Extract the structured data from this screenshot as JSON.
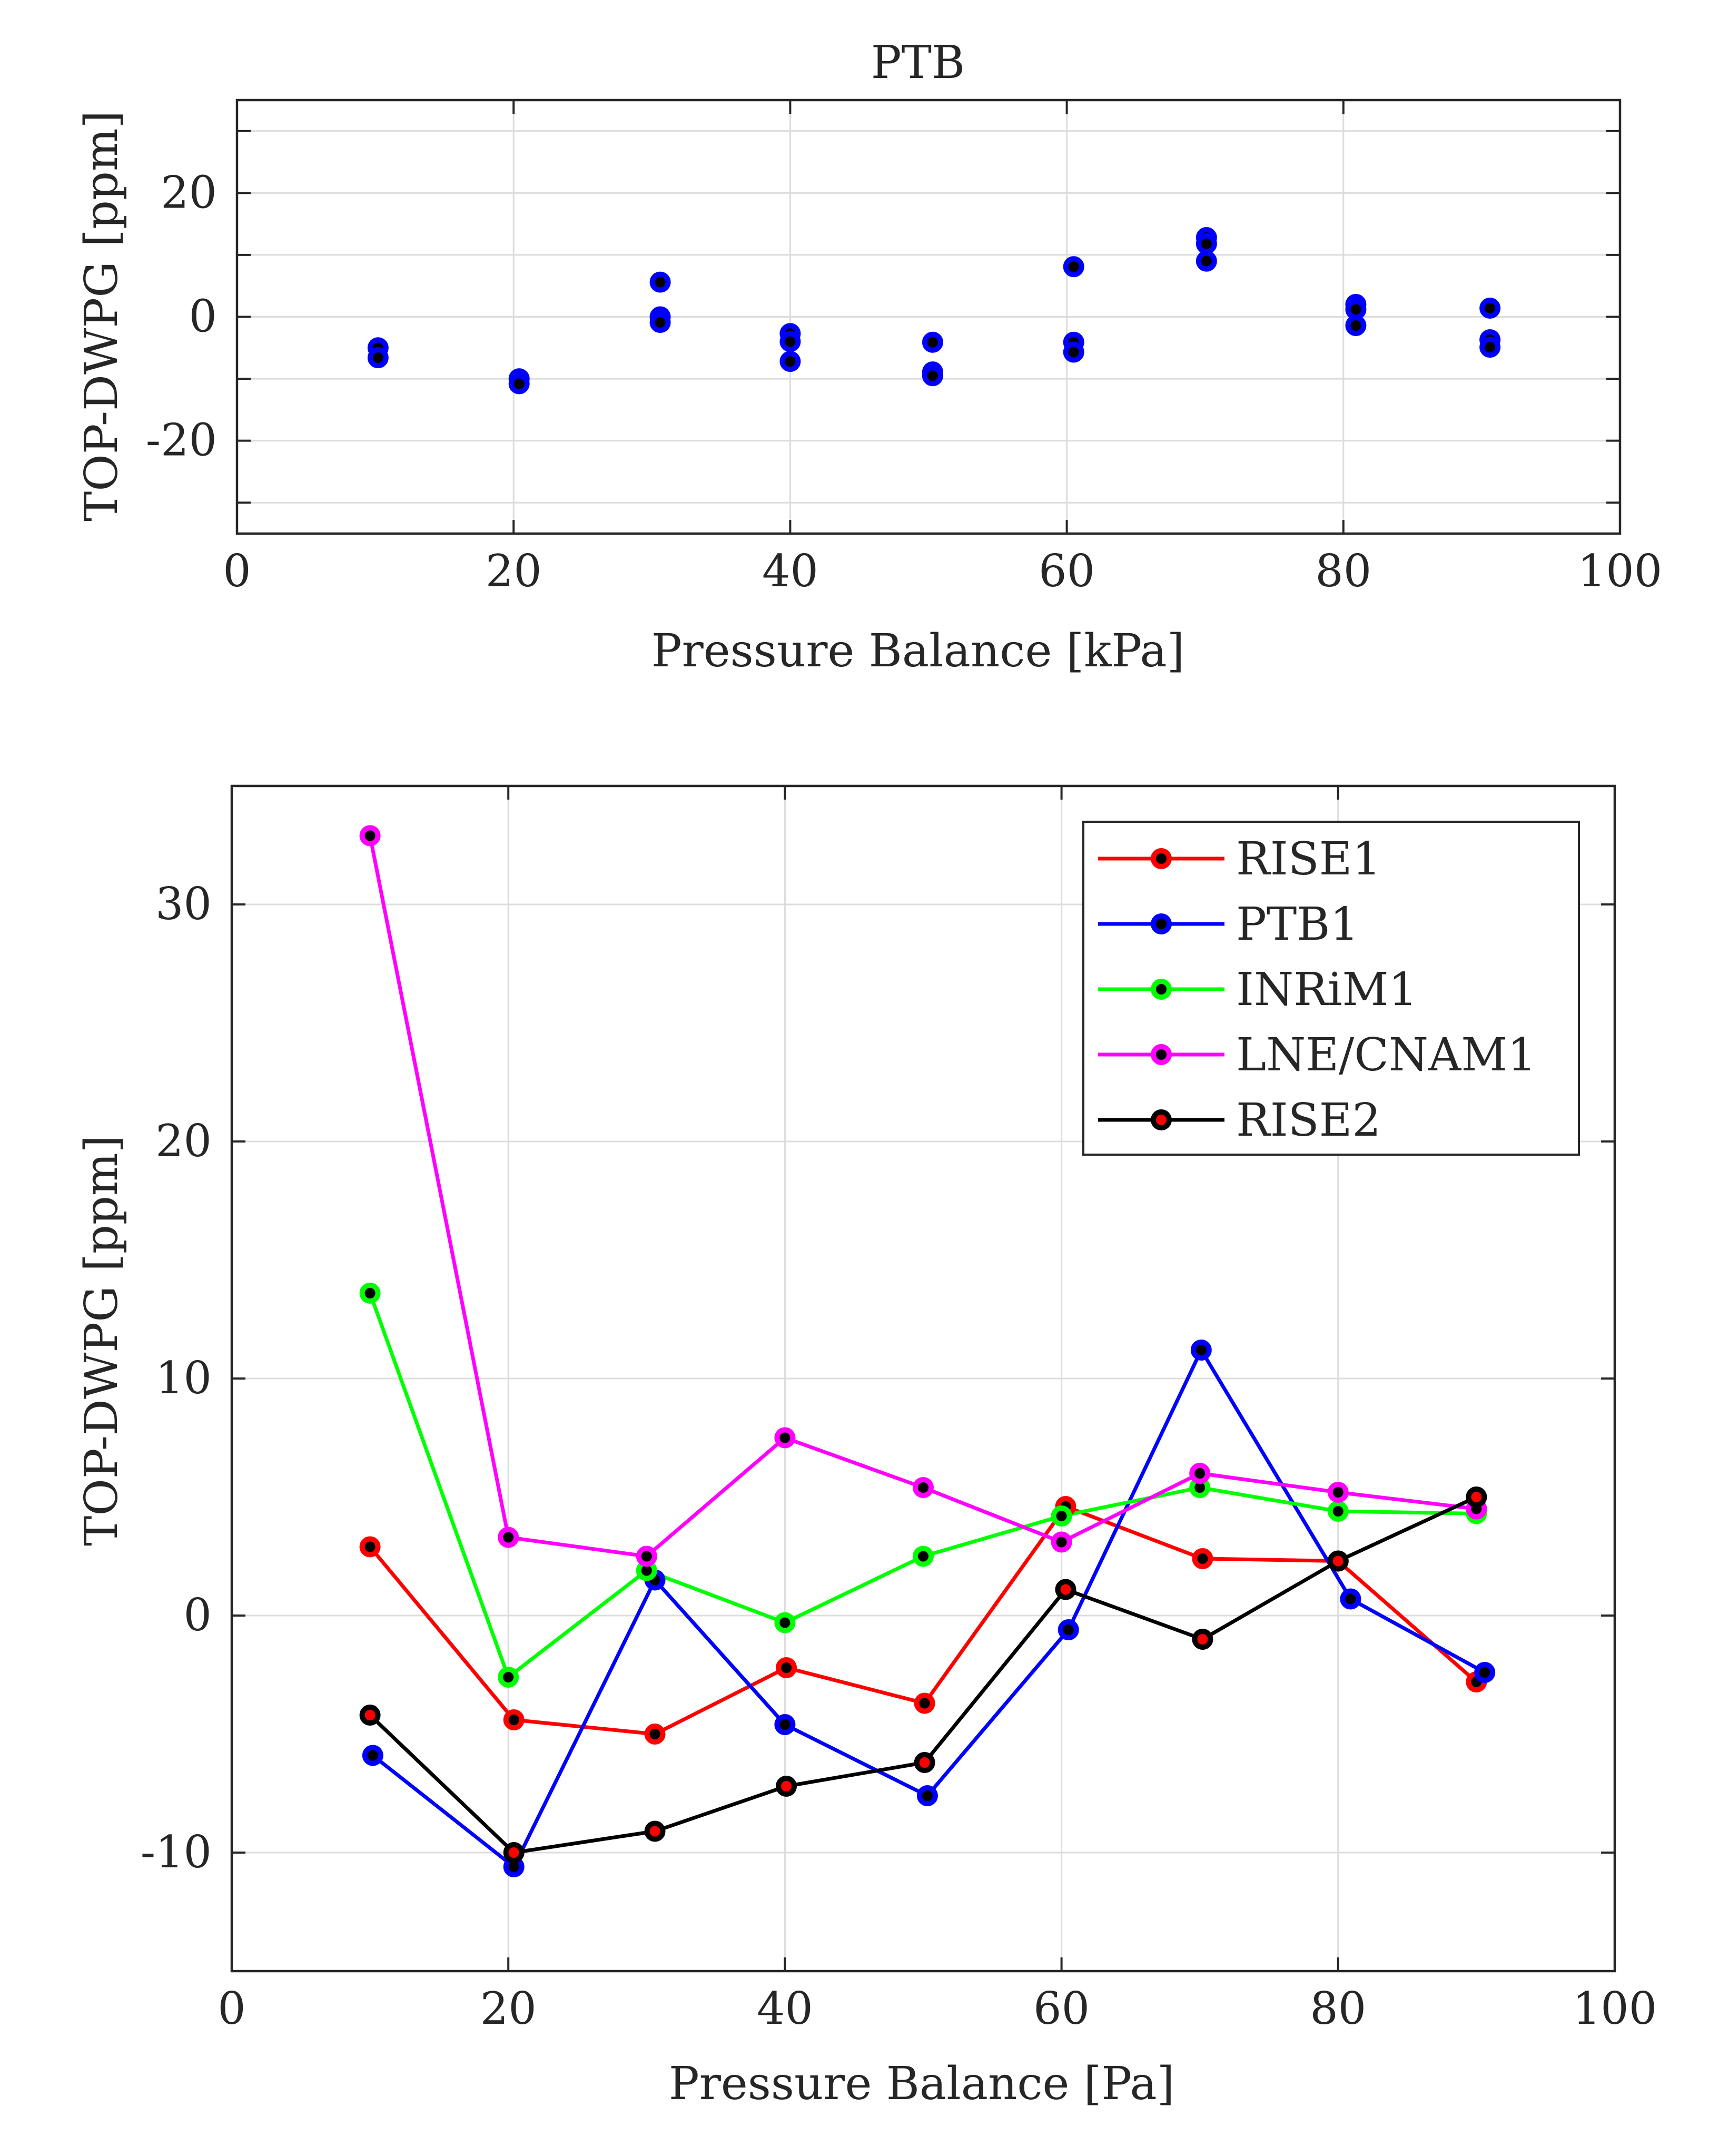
{
  "chart_data": [
    {
      "type": "scatter",
      "title": "PTB",
      "xlabel": "Pressure Balance [kPa]",
      "ylabel": "TOP-DWPG [ppm]",
      "xlim": [
        0,
        100
      ],
      "ylim": [
        -35,
        35
      ],
      "xticks": [
        0,
        20,
        40,
        60,
        80,
        100
      ],
      "yticks": [
        -20,
        0,
        20
      ],
      "xtick_labels": [
        "0",
        "20",
        "40",
        "60",
        "80",
        "100"
      ],
      "ytick_labels": [
        "-20",
        "0",
        "20"
      ],
      "grid": true,
      "marker_face": "#000000",
      "marker_edge": "#0000ff",
      "points": [
        {
          "x": 10.2,
          "y": -5.0
        },
        {
          "x": 10.2,
          "y": -6.6
        },
        {
          "x": 20.4,
          "y": -10.0
        },
        {
          "x": 20.4,
          "y": -10.8
        },
        {
          "x": 30.6,
          "y": 5.6
        },
        {
          "x": 30.6,
          "y": 0.0
        },
        {
          "x": 30.6,
          "y": -0.9
        },
        {
          "x": 40.0,
          "y": -2.7
        },
        {
          "x": 40.0,
          "y": -4.0
        },
        {
          "x": 40.0,
          "y": -7.2
        },
        {
          "x": 50.3,
          "y": -4.1
        },
        {
          "x": 50.3,
          "y": -8.9
        },
        {
          "x": 50.3,
          "y": -9.5
        },
        {
          "x": 60.5,
          "y": 8.1
        },
        {
          "x": 60.5,
          "y": -4.1
        },
        {
          "x": 60.5,
          "y": -5.7
        },
        {
          "x": 70.1,
          "y": 12.8
        },
        {
          "x": 70.1,
          "y": 11.8
        },
        {
          "x": 70.1,
          "y": 9.0
        },
        {
          "x": 80.9,
          "y": 2.0
        },
        {
          "x": 80.9,
          "y": 1.2
        },
        {
          "x": 80.9,
          "y": -1.4
        },
        {
          "x": 90.6,
          "y": 1.4
        },
        {
          "x": 90.6,
          "y": -3.7
        },
        {
          "x": 90.6,
          "y": -4.9
        }
      ]
    },
    {
      "type": "line",
      "xlabel": "Pressure Balance [Pa]",
      "ylabel": "TOP-DWPG [ppm]",
      "xlim": [
        0,
        100
      ],
      "ylim": [
        -15,
        35
      ],
      "xticks": [
        0,
        20,
        40,
        60,
        80,
        100
      ],
      "yticks": [
        -10,
        0,
        10,
        20,
        30
      ],
      "xtick_labels": [
        "0",
        "20",
        "40",
        "60",
        "80",
        "100"
      ],
      "ytick_labels": [
        "-10",
        "0",
        "10",
        "20",
        "30"
      ],
      "grid": true,
      "legend_position": "top-right",
      "series": [
        {
          "name": "RISE1",
          "color": "#ff0000",
          "marker_face": "#000000",
          "marker_edge": "#ff0000",
          "x": [
            10.0,
            20.4,
            30.6,
            40.1,
            50.1,
            60.3,
            70.2,
            80.0,
            90.0
          ],
          "y": [
            2.9,
            -4.4,
            -5.0,
            -2.2,
            -3.7,
            4.6,
            2.4,
            2.3,
            -2.8
          ]
        },
        {
          "name": "PTB1",
          "color": "#0000ff",
          "marker_face": "#000000",
          "marker_edge": "#0000ff",
          "x": [
            10.2,
            20.4,
            30.6,
            40.0,
            50.3,
            60.5,
            70.1,
            80.9,
            90.6
          ],
          "y": [
            -5.9,
            -10.6,
            1.5,
            -4.6,
            -7.6,
            -0.6,
            11.2,
            0.7,
            -2.4
          ]
        },
        {
          "name": "INRiM1",
          "color": "#00ff00",
          "marker_face": "#000000",
          "marker_edge": "#00ff00",
          "x": [
            10.0,
            20.0,
            30.0,
            40.0,
            50.0,
            60.0,
            70.0,
            80.0,
            90.0
          ],
          "y": [
            13.6,
            -2.6,
            1.9,
            -0.3,
            2.5,
            4.2,
            5.4,
            4.4,
            4.3
          ]
        },
        {
          "name": "LNE/CNAM1",
          "color": "#ff00ff",
          "marker_face": "#000000",
          "marker_edge": "#ff00ff",
          "x": [
            10.0,
            20.0,
            30.0,
            40.0,
            50.0,
            60.0,
            70.0,
            80.0,
            90.0
          ],
          "y": [
            32.9,
            3.3,
            2.5,
            7.5,
            5.4,
            3.1,
            6.0,
            5.2,
            4.5
          ]
        },
        {
          "name": "RISE2",
          "color": "#000000",
          "marker_face": "#ff0000",
          "marker_edge": "#000000",
          "x": [
            10.0,
            20.4,
            30.6,
            40.1,
            50.1,
            60.3,
            70.2,
            80.0,
            90.0
          ],
          "y": [
            -4.2,
            -10.0,
            -9.1,
            -7.2,
            -6.2,
            1.1,
            -1.0,
            2.3,
            5.0
          ]
        }
      ]
    }
  ]
}
